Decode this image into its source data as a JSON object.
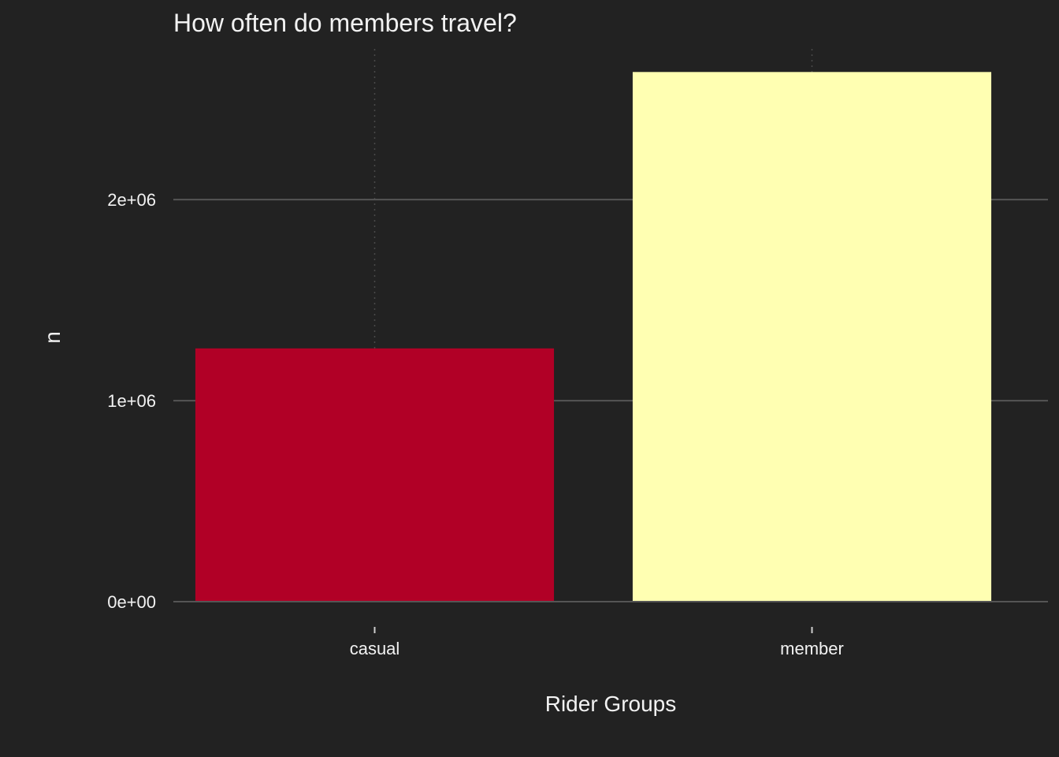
{
  "chart_data": {
    "type": "bar",
    "title": "How often do members travel?",
    "xlabel": "Rider Groups",
    "ylabel": "n",
    "categories": [
      "casual",
      "member"
    ],
    "values": [
      1260000,
      2635000
    ],
    "bar_colors": [
      "#b10026",
      "#ffffb2"
    ],
    "ylim": [
      0,
      2750000
    ],
    "yticks": [
      0,
      1000000,
      2000000
    ],
    "ytick_labels": [
      "0e+00",
      "1e+06",
      "2e+06"
    ],
    "background": "#222222",
    "grid": true,
    "legend": "none"
  }
}
